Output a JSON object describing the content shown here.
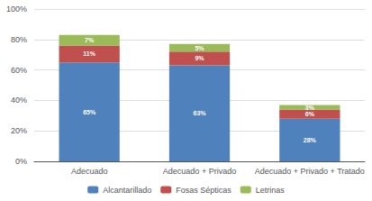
{
  "chart_data": {
    "type": "bar",
    "stacked": true,
    "categories": [
      "Adecuado",
      "Adecuado + Privado",
      "Adecuado + Privado + Tratado"
    ],
    "series": [
      {
        "name": "Alcantarillado",
        "color": "#4F81BD",
        "values": [
          65,
          63,
          28
        ],
        "value_labels": [
          "65%",
          "63%",
          "28%"
        ]
      },
      {
        "name": "Fosas Sépticas",
        "color": "#C0504D",
        "values": [
          11,
          9,
          6
        ],
        "value_labels": [
          "11%",
          "9%",
          "6%"
        ]
      },
      {
        "name": "Letrinas",
        "color": "#9BBB59",
        "values": [
          7,
          5,
          3
        ],
        "value_labels": [
          "7%",
          "5%",
          "3%"
        ]
      }
    ],
    "ylim": [
      0,
      100
    ],
    "yticks": [
      {
        "value": 0,
        "label": "0%"
      },
      {
        "value": 20,
        "label": "20%"
      },
      {
        "value": 40,
        "label": "40%"
      },
      {
        "value": 60,
        "label": "60%"
      },
      {
        "value": 80,
        "label": "80%"
      },
      {
        "value": 100,
        "label": "100%"
      }
    ],
    "grid": true,
    "legend": "bottom",
    "data_labels": true
  }
}
